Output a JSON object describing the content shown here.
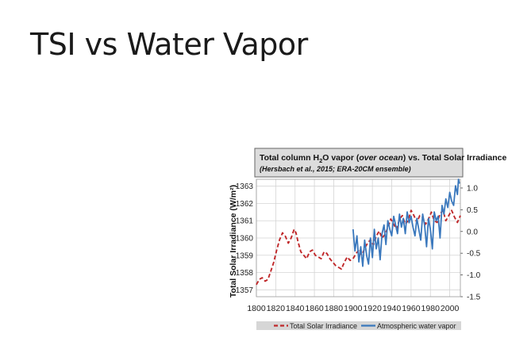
{
  "slide": {
    "title": "TSI vs Water Vapor"
  },
  "chart_data": {
    "type": "line",
    "title_line1_pre": "Total column H",
    "title_sub": "2",
    "title_line1_mid": "O vapor (",
    "title_line1_italic": "over ocean",
    "title_line1_post": ") vs. Total Solar Irradiance",
    "title_line2": "(Hersbach et al., 2015; ERA-20CM ensemble)",
    "ylabel_left": "Total Solar Irradiance (W/m²)",
    "ylabel_right": "",
    "xlim": [
      1800,
      2011
    ],
    "ylim_left": [
      1356.6,
      1363.4
    ],
    "ylim_right": [
      -1.5,
      1.2
    ],
    "x_ticks": [
      "1800",
      "1820",
      "1840",
      "1860",
      "1880",
      "1900",
      "1920",
      "1940",
      "1960",
      "1980",
      "2000"
    ],
    "y_left_ticks": [
      "1357",
      "1358",
      "1359",
      "1360",
      "1361",
      "1362",
      "1363"
    ],
    "y_right_ticks": [
      "-1.5",
      "-1.0",
      "-0.5",
      "0.0",
      "0.5",
      "1.0"
    ],
    "legend_placement": "bottom",
    "colors": {
      "tsi": "#c0282a",
      "water_vapor": "#3a78bd"
    },
    "series": [
      {
        "name": "Total Solar Irradiance",
        "axis": "left",
        "style": "dashed",
        "x": [
          1800,
          1803,
          1806,
          1809,
          1812,
          1815,
          1818,
          1821,
          1824,
          1827,
          1830,
          1833,
          1836,
          1839,
          1841,
          1843,
          1846,
          1849,
          1852,
          1855,
          1858,
          1861,
          1864,
          1867,
          1870,
          1873,
          1876,
          1879,
          1882,
          1885,
          1888,
          1891,
          1894,
          1897,
          1900,
          1903,
          1906,
          1909,
          1912,
          1915,
          1918,
          1921,
          1924,
          1927,
          1930,
          1933,
          1936,
          1939,
          1942,
          1945,
          1948,
          1951,
          1954,
          1957,
          1960,
          1963,
          1966,
          1969,
          1972,
          1975,
          1978,
          1981,
          1984,
          1987,
          1990,
          1993,
          1996,
          1999,
          2002,
          2005,
          2008,
          2011
        ],
        "y": [
          1357.3,
          1357.6,
          1357.7,
          1357.5,
          1357.6,
          1358.1,
          1358.6,
          1359.3,
          1359.9,
          1360.3,
          1360.1,
          1359.7,
          1360.0,
          1360.5,
          1360.3,
          1359.8,
          1359.2,
          1359.0,
          1358.8,
          1359.2,
          1359.3,
          1359.0,
          1358.9,
          1358.8,
          1359.2,
          1359.1,
          1358.8,
          1358.6,
          1358.4,
          1358.3,
          1358.2,
          1358.6,
          1358.9,
          1358.7,
          1358.8,
          1359.1,
          1359.3,
          1359.0,
          1359.4,
          1359.7,
          1359.9,
          1359.6,
          1360.1,
          1360.4,
          1360.0,
          1360.2,
          1360.6,
          1361.1,
          1360.8,
          1360.5,
          1361.1,
          1361.3,
          1360.8,
          1361.0,
          1361.6,
          1361.3,
          1360.9,
          1361.3,
          1361.2,
          1360.8,
          1361.1,
          1361.5,
          1361.0,
          1360.9,
          1361.4,
          1361.6,
          1361.0,
          1361.3,
          1361.6,
          1361.2,
          1360.9,
          1361.3
        ]
      },
      {
        "name": "Atmospheric water vapor",
        "axis": "right",
        "style": "solid",
        "x": [
          1900,
          1902,
          1904,
          1906,
          1908,
          1910,
          1912,
          1914,
          1916,
          1918,
          1920,
          1922,
          1924,
          1926,
          1928,
          1930,
          1932,
          1934,
          1936,
          1938,
          1940,
          1942,
          1944,
          1946,
          1948,
          1950,
          1952,
          1954,
          1956,
          1958,
          1960,
          1962,
          1964,
          1966,
          1968,
          1970,
          1972,
          1974,
          1976,
          1978,
          1980,
          1982,
          1984,
          1986,
          1988,
          1990,
          1992,
          1994,
          1996,
          1998,
          2000,
          2002,
          2004,
          2006,
          2008,
          2009,
          2010
        ],
        "y": [
          0.05,
          -0.45,
          -0.1,
          -0.7,
          -0.35,
          -0.8,
          -0.2,
          -0.55,
          -0.75,
          -0.15,
          -0.6,
          0.05,
          -0.4,
          -0.15,
          -0.65,
          -0.05,
          0.15,
          -0.3,
          0.25,
          0.05,
          -0.1,
          0.35,
          0.15,
          -0.05,
          0.4,
          0.1,
          0.3,
          -0.05,
          0.45,
          0.2,
          0.35,
          0.1,
          -0.1,
          0.3,
          0.05,
          -0.2,
          0.4,
          0.15,
          -0.35,
          0.3,
          0.05,
          -0.4,
          0.45,
          0.25,
          0.35,
          -0.15,
          0.6,
          0.4,
          0.75,
          0.55,
          0.9,
          0.7,
          0.6,
          1.05,
          0.85,
          1.2,
          1.1
        ]
      }
    ]
  }
}
